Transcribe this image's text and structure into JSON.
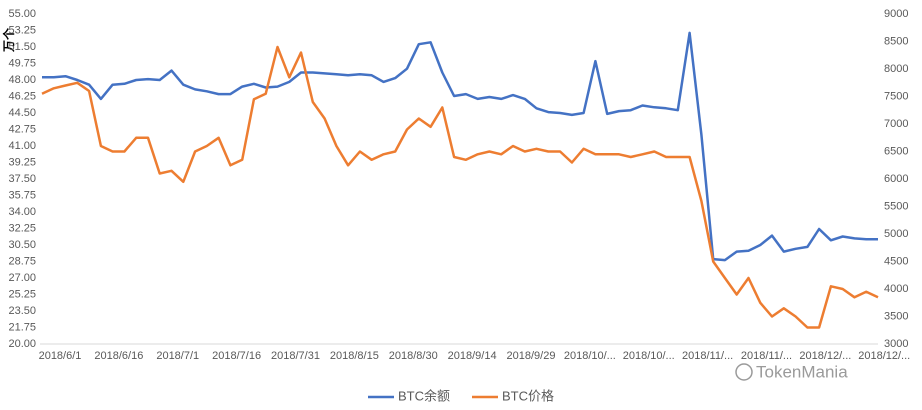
{
  "chart_data": {
    "type": "line",
    "y_label": "万个",
    "categories": [
      "2018/6/1",
      null,
      null,
      null,
      null,
      "2018/6/16",
      null,
      null,
      null,
      null,
      "2018/7/1",
      null,
      null,
      null,
      null,
      "2018/7/16",
      null,
      null,
      null,
      null,
      "2018/7/31",
      null,
      null,
      null,
      null,
      "2018/8/15",
      null,
      null,
      null,
      null,
      "2018/8/30",
      null,
      null,
      null,
      null,
      "2018/9/14",
      null,
      null,
      null,
      null,
      "2018/9/29",
      null,
      null,
      null,
      null,
      "2018/10/...",
      null,
      null,
      null,
      null,
      "2018/10/...",
      null,
      null,
      null,
      null,
      "2018/11/...",
      null,
      null,
      null,
      null,
      "2018/11/...",
      null,
      null,
      null,
      null,
      "2018/12/...",
      null,
      null,
      null,
      null,
      "2018/12/...",
      null
    ],
    "series": [
      {
        "name": "BTC余额",
        "color": "#4472c4",
        "values": [
          48.3,
          48.3,
          48.4,
          48.0,
          47.5,
          46.0,
          47.5,
          47.6,
          48.0,
          48.1,
          48.0,
          49.0,
          47.5,
          47.0,
          46.8,
          46.5,
          46.5,
          47.3,
          47.6,
          47.2,
          47.3,
          47.8,
          48.8,
          48.8,
          48.7,
          48.6,
          48.5,
          48.6,
          48.5,
          47.8,
          48.2,
          49.2,
          51.8,
          52.0,
          48.8,
          46.3,
          46.5,
          46.0,
          46.2,
          46.0,
          46.4,
          46.0,
          45.0,
          44.6,
          44.5,
          44.3,
          44.5,
          50.0,
          44.4,
          44.7,
          44.8,
          45.3,
          45.1,
          45.0,
          44.8,
          53.0,
          42.2,
          29.0,
          28.9,
          29.8,
          29.9,
          30.5,
          31.5,
          29.8,
          30.1,
          30.3,
          32.2,
          31.0,
          31.4,
          31.2,
          31.1,
          31.1
        ]
      },
      {
        "name": "BTC价格",
        "color": "#ed7d31",
        "axis": "y2",
        "values": [
          7550,
          7650,
          7700,
          7750,
          7600,
          6600,
          6500,
          6500,
          6750,
          6750,
          6100,
          6150,
          5950,
          6500,
          6600,
          6750,
          6250,
          6350,
          7450,
          7550,
          8400,
          7850,
          8300,
          7400,
          7100,
          6600,
          6250,
          6500,
          6350,
          6450,
          6500,
          6900,
          7100,
          6950,
          7300,
          6400,
          6350,
          6450,
          6500,
          6450,
          6600,
          6500,
          6550,
          6500,
          6500,
          6300,
          6550,
          6450,
          6450,
          6450,
          6400,
          6450,
          6500,
          6400,
          6400,
          6400,
          5600,
          4500,
          4200,
          3900,
          4200,
          3750,
          3500,
          3650,
          3500,
          3300,
          3300,
          4050,
          4000,
          3850,
          3950,
          3850
        ]
      }
    ],
    "ylim": [
      20,
      55
    ],
    "yticks": [
      {
        "value": 20,
        "label": "20.00"
      },
      {
        "value": 21.75,
        "label": "21.75"
      },
      {
        "value": 23.5,
        "label": "23.50"
      },
      {
        "value": 25.25,
        "label": "25.25"
      },
      {
        "value": 27,
        "label": "27.00"
      },
      {
        "value": 28.75,
        "label": "28.75"
      },
      {
        "value": 30.5,
        "label": "30.50"
      },
      {
        "value": 32.25,
        "label": "32.25"
      },
      {
        "value": 34,
        "label": "34.00"
      },
      {
        "value": 35.75,
        "label": "35.75"
      },
      {
        "value": 37.5,
        "label": "37.50"
      },
      {
        "value": 39.25,
        "label": "39.25"
      },
      {
        "value": 41,
        "label": "41.00"
      },
      {
        "value": 42.75,
        "label": "42.75"
      },
      {
        "value": 44.5,
        "label": "44.50"
      },
      {
        "value": 46.25,
        "label": "46.25"
      },
      {
        "value": 48,
        "label": "48.00"
      },
      {
        "value": 49.75,
        "label": "49.75"
      },
      {
        "value": 51.5,
        "label": "51.50"
      },
      {
        "value": 53.25,
        "label": "53.25"
      },
      {
        "value": 55,
        "label": "55.00"
      }
    ],
    "y2lim": [
      3000,
      9000
    ],
    "y2ticks": [
      3000,
      3500,
      4000,
      4500,
      5000,
      5500,
      6000,
      6500,
      7000,
      7500,
      8000,
      8500,
      9000
    ],
    "grid": false,
    "legend": "bottom"
  },
  "watermark": "TokenMania"
}
